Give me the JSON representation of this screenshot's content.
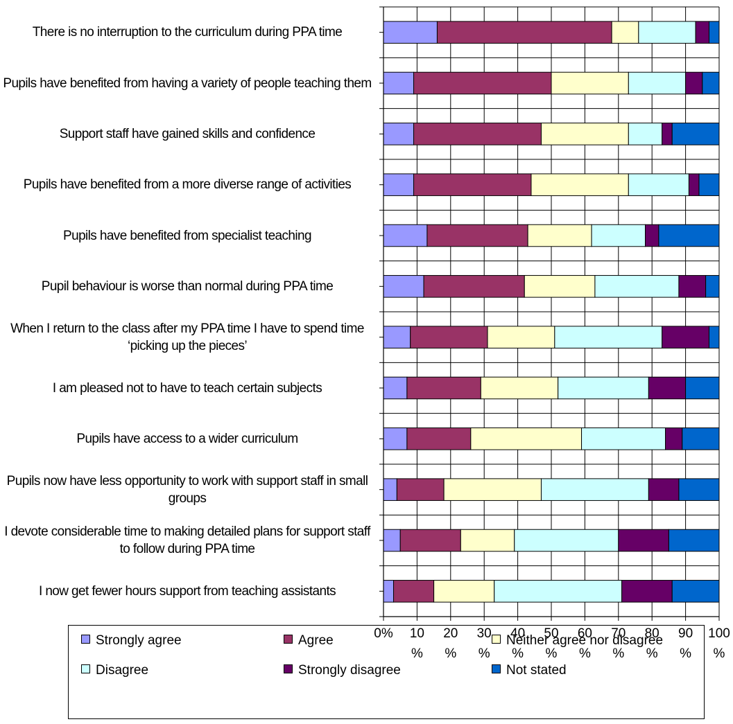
{
  "chart_data": {
    "type": "bar",
    "orientation": "horizontal",
    "stacked": true,
    "percent": true,
    "title": "",
    "xlabel": "",
    "ylabel": "",
    "xlim": [
      0,
      100
    ],
    "grid": true,
    "legend_position": "bottom",
    "x_ticks": [
      "0%",
      "10 %",
      "20 %",
      "30 %",
      "40 %",
      "50 %",
      "60 %",
      "70 %",
      "80 %",
      "90 %",
      "100 %"
    ],
    "categories": [
      "There is no interruption to the curriculum during PPA time",
      "Pupils have benefited from having a variety of people teaching them",
      "Support staff have gained skills and confidence",
      "Pupils have benefited from a more diverse range of activities",
      "Pupils have benefited from specialist teaching",
      "Pupil behaviour is worse than normal during PPA time",
      "When I return to the class after my PPA time I have to spend time ‘picking up the pieces’",
      "I am pleased not to have to teach certain subjects",
      "Pupils have access to a wider curriculum",
      "Pupils now have less opportunity to work with support staff in small groups",
      "I devote considerable time to making detailed plans for support staff to follow during PPA time",
      "I now get fewer hours support from teaching assistants"
    ],
    "series": [
      {
        "name": "Strongly agree",
        "color": "#9999FF",
        "values": [
          16,
          9,
          9,
          9,
          13,
          12,
          8,
          7,
          7,
          4,
          5,
          3
        ]
      },
      {
        "name": "Agree",
        "color": "#993366",
        "values": [
          52,
          41,
          38,
          35,
          30,
          30,
          23,
          22,
          19,
          14,
          18,
          12
        ]
      },
      {
        "name": "Neither agree nor disagree",
        "color": "#FFFFCC",
        "values": [
          8,
          23,
          26,
          29,
          19,
          21,
          20,
          23,
          33,
          29,
          16,
          18
        ]
      },
      {
        "name": "Disagree",
        "color": "#CCFFFF",
        "values": [
          17,
          17,
          10,
          18,
          16,
          25,
          32,
          27,
          25,
          32,
          31,
          38
        ]
      },
      {
        "name": "Strongly disagree",
        "color": "#660066",
        "values": [
          4,
          5,
          3,
          3,
          4,
          8,
          14,
          11,
          5,
          9,
          15,
          15
        ]
      },
      {
        "name": "Not stated",
        "color": "#0066CC",
        "values": [
          3,
          5,
          14,
          6,
          18,
          4,
          3,
          10,
          11,
          12,
          15,
          14
        ]
      }
    ]
  }
}
